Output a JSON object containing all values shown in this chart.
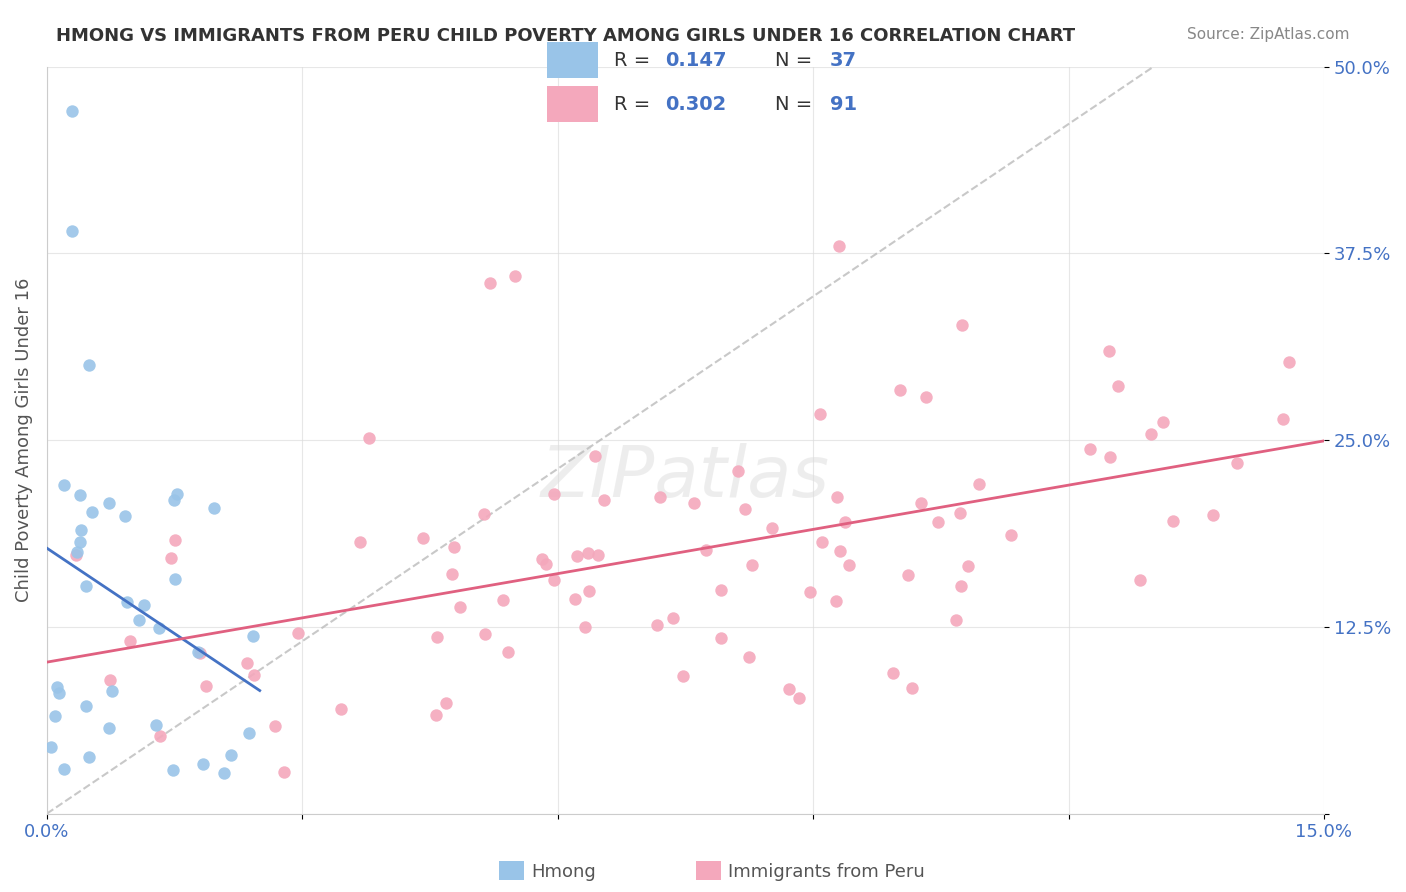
{
  "title": "HMONG VS IMMIGRANTS FROM PERU CHILD POVERTY AMONG GIRLS UNDER 16 CORRELATION CHART",
  "source": "Source: ZipAtlas.com",
  "ylabel": "Child Poverty Among Girls Under 16",
  "xlim": [
    0.0,
    0.15
  ],
  "ylim": [
    0.0,
    0.5
  ],
  "xtick_vals": [
    0.0,
    0.03,
    0.06,
    0.09,
    0.12,
    0.15
  ],
  "xticklabels": [
    "0.0%",
    "",
    "",
    "",
    "",
    "15.0%"
  ],
  "ytick_vals": [
    0.0,
    0.125,
    0.25,
    0.375,
    0.5
  ],
  "yticklabels": [
    "",
    "12.5%",
    "25.0%",
    "37.5%",
    "50.0%"
  ],
  "hmong_color": "#99C4E8",
  "peru_color": "#F4A8BC",
  "hmong_line_color": "#4472C4",
  "peru_line_color": "#E06080",
  "watermark": "ZIPatlas",
  "legend_r1_val": "0.147",
  "legend_n1_val": "37",
  "legend_r2_val": "0.302",
  "legend_n2_val": "91"
}
